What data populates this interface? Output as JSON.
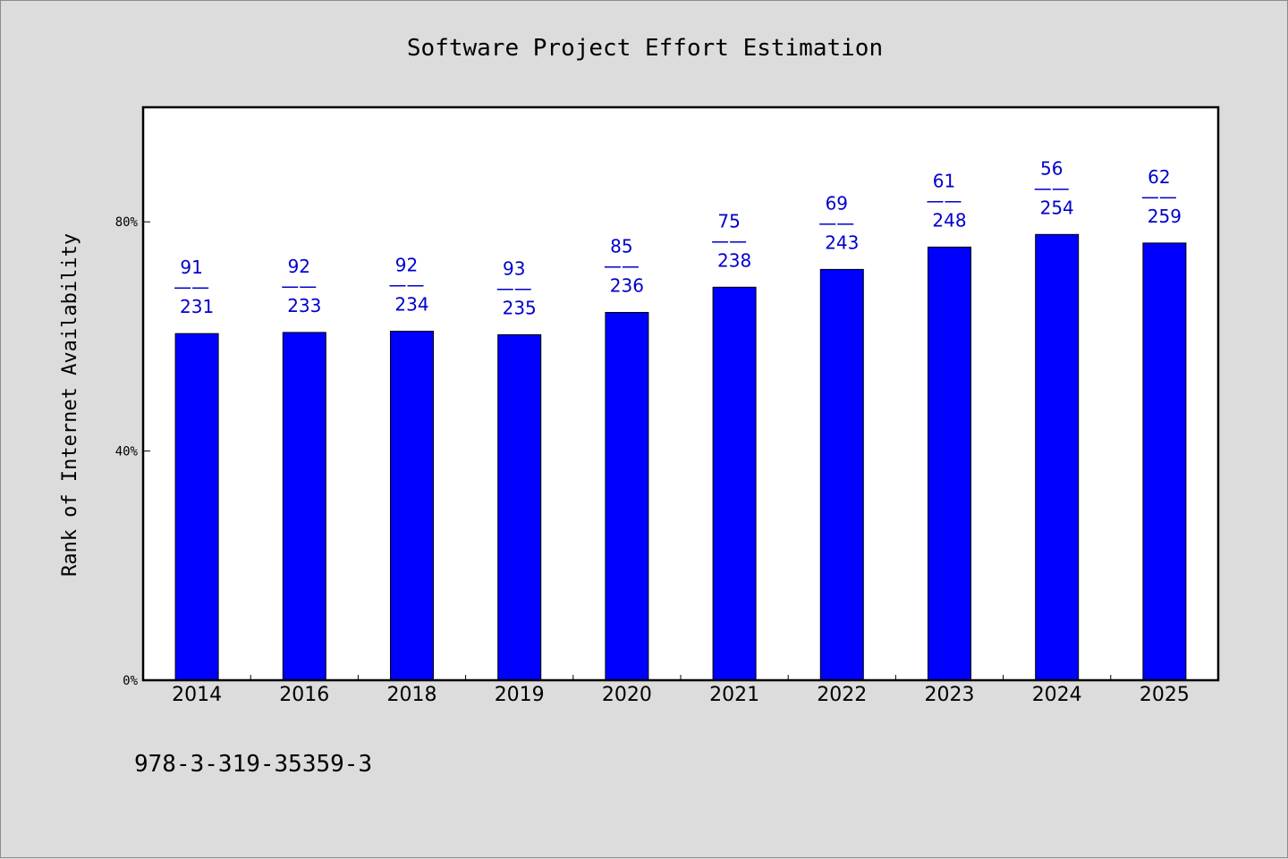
{
  "chart_data": {
    "type": "bar",
    "title": "Software Project Effort Estimation",
    "xlabel": "",
    "ylabel": "Rank of Internet Availability",
    "categories": [
      "2014",
      "2016",
      "2018",
      "2019",
      "2020",
      "2021",
      "2022",
      "2023",
      "2024",
      "2025"
    ],
    "values": [
      60.5,
      60.7,
      60.9,
      60.3,
      64.2,
      68.6,
      71.7,
      75.6,
      77.8,
      76.3
    ],
    "label_top": [
      "91",
      "92",
      "92",
      "93",
      "85",
      "75",
      "69",
      "61",
      "56",
      "62"
    ],
    "label_separator": "——",
    "label_bottom": [
      "231",
      "233",
      "234",
      "235",
      "236",
      "238",
      "243",
      "248",
      "254",
      "259"
    ],
    "ylim": [
      0,
      100
    ],
    "yticks": [
      0,
      40,
      80
    ],
    "ytick_labels": [
      "0%",
      "40%",
      "80%"
    ],
    "grid": false,
    "legend": "none"
  },
  "footnote": "978-3-319-35359-3",
  "colors": {
    "background": "#dcdcdc",
    "plot_background": "#ffffff",
    "bar": "#0000ff",
    "bar_outline": "#000000",
    "data_label": "#0000cc"
  }
}
